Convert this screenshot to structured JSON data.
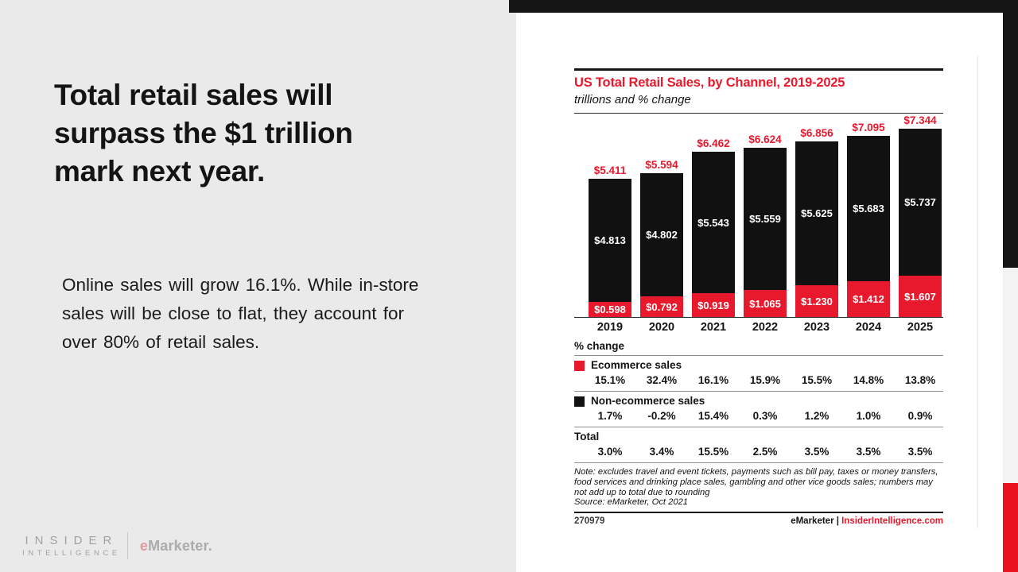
{
  "colors": {
    "accent_red": "#e8192d",
    "bar_black": "#111111",
    "left_background": "#eaeaea",
    "edge_strip_gray": "#f3f3f3",
    "edge_strip_red": "#e8131f"
  },
  "slide": {
    "title_lines": [
      "Total retail sales will",
      "surpass the $1 trillion",
      "mark next year."
    ],
    "body_lines": [
      "Online sales will grow 16.1%. While in-store",
      "sales will be close to flat, they account for",
      "over 80% of retail sales."
    ],
    "logo": {
      "insider_top": "INSIDER",
      "insider_bottom": "INTELLIGENCE",
      "emarketer_e": "e",
      "emarketer_rest": "Marketer."
    }
  },
  "chart": {
    "title": "US Total Retail Sales, by Channel, 2019-2025",
    "subtitle": "trillions and % change",
    "pct_change_label": "% change",
    "note_lines": [
      "Note: excludes travel and event tickets, payments such as bill pay, taxes or money transfers,",
      "food services and drinking place sales, gambling and other vice goods sales; numbers may",
      "not add up to total due to rounding",
      "Source: eMarketer, Oct 2021"
    ],
    "footer_id": "270979",
    "footer_brand_black": "eMarketer |",
    "footer_brand_red": "InsiderIntelligence.com"
  },
  "chart_data": {
    "type": "bar",
    "stacked": true,
    "title": "US Total Retail Sales, by Channel, 2019-2025",
    "subtitle": "trillions and % change",
    "unit": "trillions USD",
    "x": [
      "2019",
      "2020",
      "2021",
      "2022",
      "2023",
      "2024",
      "2025"
    ],
    "ylim": [
      0,
      7.6
    ],
    "legend_position": "below",
    "series": [
      {
        "name": "Ecommerce sales",
        "color": "#e8192d",
        "values": [
          0.598,
          0.792,
          0.919,
          1.065,
          1.23,
          1.412,
          1.607
        ],
        "labels": [
          "$0.598",
          "$0.792",
          "$0.919",
          "$1.065",
          "$1.230",
          "$1.412",
          "$1.607"
        ]
      },
      {
        "name": "Non-ecommerce sales",
        "color": "#111111",
        "values": [
          4.813,
          4.802,
          5.543,
          5.559,
          5.625,
          5.683,
          5.737
        ],
        "labels": [
          "$4.813",
          "$4.802",
          "$5.543",
          "$5.559",
          "$5.625",
          "$5.683",
          "$5.737"
        ]
      }
    ],
    "totals": {
      "values": [
        5.411,
        5.594,
        6.462,
        6.624,
        6.856,
        7.095,
        7.344
      ],
      "labels": [
        "$5.411",
        "$5.594",
        "$6.462",
        "$6.624",
        "$6.856",
        "$7.095",
        "$7.344"
      ]
    },
    "pct_change": [
      {
        "name": "Ecommerce sales",
        "swatch": "#e8192d",
        "values": [
          "15.1%",
          "32.4%",
          "16.1%",
          "15.9%",
          "15.5%",
          "14.8%",
          "13.8%"
        ]
      },
      {
        "name": "Non-ecommerce sales",
        "swatch": "#111111",
        "values": [
          "1.7%",
          "-0.2%",
          "15.4%",
          "0.3%",
          "1.2%",
          "1.0%",
          "0.9%"
        ]
      },
      {
        "name": "Total",
        "swatch": null,
        "values": [
          "3.0%",
          "3.4%",
          "15.5%",
          "2.5%",
          "3.5%",
          "3.5%",
          "3.5%"
        ]
      }
    ]
  }
}
